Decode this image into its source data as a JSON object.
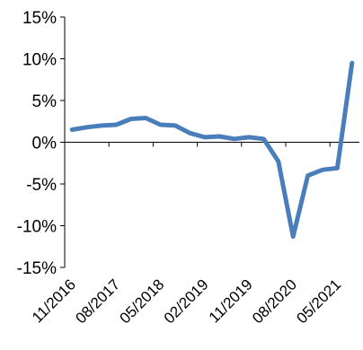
{
  "chart_data": {
    "type": "line",
    "title": "",
    "xlabel": "",
    "ylabel": "",
    "ylim": [
      -15,
      15
    ],
    "yticks": [
      {
        "value": 15,
        "label": "15%"
      },
      {
        "value": 10,
        "label": "10%"
      },
      {
        "value": 5,
        "label": "5%"
      },
      {
        "value": 0,
        "label": "0%"
      },
      {
        "value": -5,
        "label": "-5%"
      },
      {
        "value": -10,
        "label": "-10%"
      },
      {
        "value": -15,
        "label": "-15%"
      }
    ],
    "x": [
      "11/2016",
      "02/2017",
      "05/2017",
      "08/2017",
      "11/2017",
      "02/2018",
      "05/2018",
      "08/2018",
      "11/2018",
      "02/2019",
      "05/2019",
      "08/2019",
      "11/2019",
      "02/2020",
      "05/2020",
      "08/2020",
      "11/2020",
      "02/2021",
      "05/2021",
      "08/2021"
    ],
    "xtick_labels": [
      "11/2016",
      "08/2017",
      "05/2018",
      "02/2019",
      "11/2019",
      "08/2020",
      "05/2021"
    ],
    "series": [
      {
        "color": "#4a7ebb",
        "values": [
          1.5,
          1.8,
          2.0,
          2.1,
          2.8,
          2.9,
          2.1,
          2.0,
          1.1,
          0.6,
          0.7,
          0.4,
          0.6,
          0.4,
          -2.3,
          -11.3,
          -4.0,
          -3.3,
          -3.1,
          9.5
        ]
      }
    ],
    "grid": false,
    "legend": "none"
  }
}
